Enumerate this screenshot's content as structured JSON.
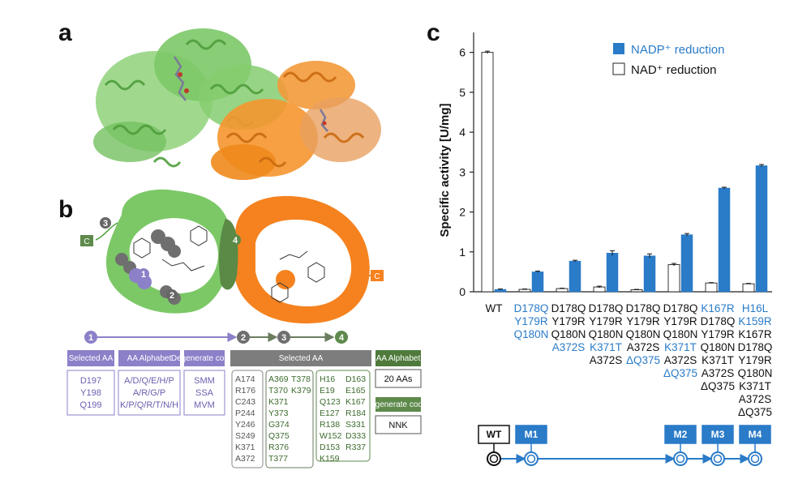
{
  "panels": {
    "a": "a",
    "b": "b",
    "c": "c"
  },
  "colors": {
    "green": "#74c160",
    "orange": "#f28b20",
    "blue": "#2a7bc8",
    "purple": "#8c80c9",
    "dark_green": "#5e8a4c",
    "grey": "#777777",
    "mutation_blue": "#2a7bc8"
  },
  "panel_b": {
    "steps": [
      "1",
      "2",
      "3",
      "4"
    ],
    "c_terminus_left": "C",
    "c_terminus_right": "C",
    "headers": {
      "selected_aa_1": "Selected AA",
      "aa_alphabet_1": "AA Alphabet",
      "degenerate_codon_1": "Degenerate codon",
      "selected_aa_2": "Selected AA",
      "aa_alphabet_2": "AA Alphabet",
      "degenerate_codon_2": "Degenerate codon"
    },
    "step1_residues": [
      "D197",
      "Y198",
      "Q199"
    ],
    "step1_alphabets": [
      "A/D/Q/E/H/P",
      "A/R/G/P",
      "K/P/Q/R/T/N/H"
    ],
    "step1_codons": [
      "SMM",
      "SSA",
      "MVM"
    ],
    "step2_residues": [
      "A174",
      "R176",
      "C243",
      "P244",
      "Y246",
      "S249",
      "K371",
      "A372"
    ],
    "step3_residues": [
      "A369",
      "T378",
      "T370",
      "K379",
      "K371",
      "Y373",
      "G374",
      "Q375",
      "R376",
      "T377"
    ],
    "step4_residues": [
      "H16",
      "D163",
      "E19",
      "E165",
      "Q123",
      "K167",
      "E127",
      "R184",
      "R138",
      "S331",
      "W152",
      "D333",
      "D153",
      "R337",
      "K159"
    ],
    "aa_alphabet_value": "20 AAs",
    "degenerate_codon_value": "NNK"
  },
  "chart_data": {
    "type": "bar",
    "ylabel": "Specific activity [U/mg]",
    "ylim": [
      0,
      6.5
    ],
    "yticks": [
      "0",
      "1",
      "2",
      "3",
      "4",
      "5",
      "6"
    ],
    "legend_position": "top-right",
    "series": [
      {
        "name": "NAD⁺ reduction",
        "color": "#ffffff",
        "values": [
          6.0,
          0.06,
          0.08,
          0.12,
          0.05,
          0.68,
          0.22,
          0.2
        ],
        "errors": [
          0.03,
          0.01,
          0.01,
          0.02,
          0.01,
          0.03,
          0.01,
          0.01
        ]
      },
      {
        "name": "NADP⁺ reduction",
        "color": "#2a7bc8",
        "values": [
          0.06,
          0.5,
          0.77,
          0.97,
          0.9,
          1.43,
          2.6,
          3.16
        ],
        "errors": [
          0.01,
          0.02,
          0.02,
          0.06,
          0.05,
          0.03,
          0.02,
          0.03
        ]
      }
    ],
    "categories": [
      [
        {
          "t": "WT",
          "b": false
        }
      ],
      [
        {
          "t": "D178Q",
          "b": true
        },
        {
          "t": "Y179R",
          "b": true
        },
        {
          "t": "Q180N",
          "b": true
        }
      ],
      [
        {
          "t": "D178Q",
          "b": false
        },
        {
          "t": "Y179R",
          "b": false
        },
        {
          "t": "Q180N",
          "b": false
        },
        {
          "t": "A372S",
          "b": true
        }
      ],
      [
        {
          "t": "D178Q",
          "b": false
        },
        {
          "t": "Y179R",
          "b": false
        },
        {
          "t": "Q180N",
          "b": false
        },
        {
          "t": "K371T",
          "b": true
        },
        {
          "t": "A372S",
          "b": false
        }
      ],
      [
        {
          "t": "D178Q",
          "b": false
        },
        {
          "t": "Y179R",
          "b": false
        },
        {
          "t": "Q180N",
          "b": false
        },
        {
          "t": "A372S",
          "b": false
        },
        {
          "t": "ΔQ375",
          "b": true
        }
      ],
      [
        {
          "t": "D178Q",
          "b": false
        },
        {
          "t": "Y179R",
          "b": false
        },
        {
          "t": "Q180N",
          "b": false
        },
        {
          "t": "K371T",
          "b": true
        },
        {
          "t": "A372S",
          "b": false
        },
        {
          "t": "ΔQ375",
          "b": true
        }
      ],
      [
        {
          "t": "K167R",
          "b": true
        },
        {
          "t": "D178Q",
          "b": false
        },
        {
          "t": "Y179R",
          "b": false
        },
        {
          "t": "Q180N",
          "b": false
        },
        {
          "t": "K371T",
          "b": false
        },
        {
          "t": "A372S",
          "b": false
        },
        {
          "t": "ΔQ375",
          "b": false
        }
      ],
      [
        {
          "t": "H16L",
          "b": true
        },
        {
          "t": "K159R",
          "b": true
        },
        {
          "t": "K167R",
          "b": false
        },
        {
          "t": "D178Q",
          "b": false
        },
        {
          "t": "Y179R",
          "b": false
        },
        {
          "t": "Q180N",
          "b": false
        },
        {
          "t": "K371T",
          "b": false
        },
        {
          "t": "A372S",
          "b": false
        },
        {
          "t": "ΔQ375",
          "b": false
        }
      ]
    ],
    "lineage_nodes": [
      "WT",
      "M1",
      "M2",
      "M3",
      "M4"
    ],
    "lineage_node_category_index": [
      0,
      1,
      5,
      6,
      7
    ]
  }
}
